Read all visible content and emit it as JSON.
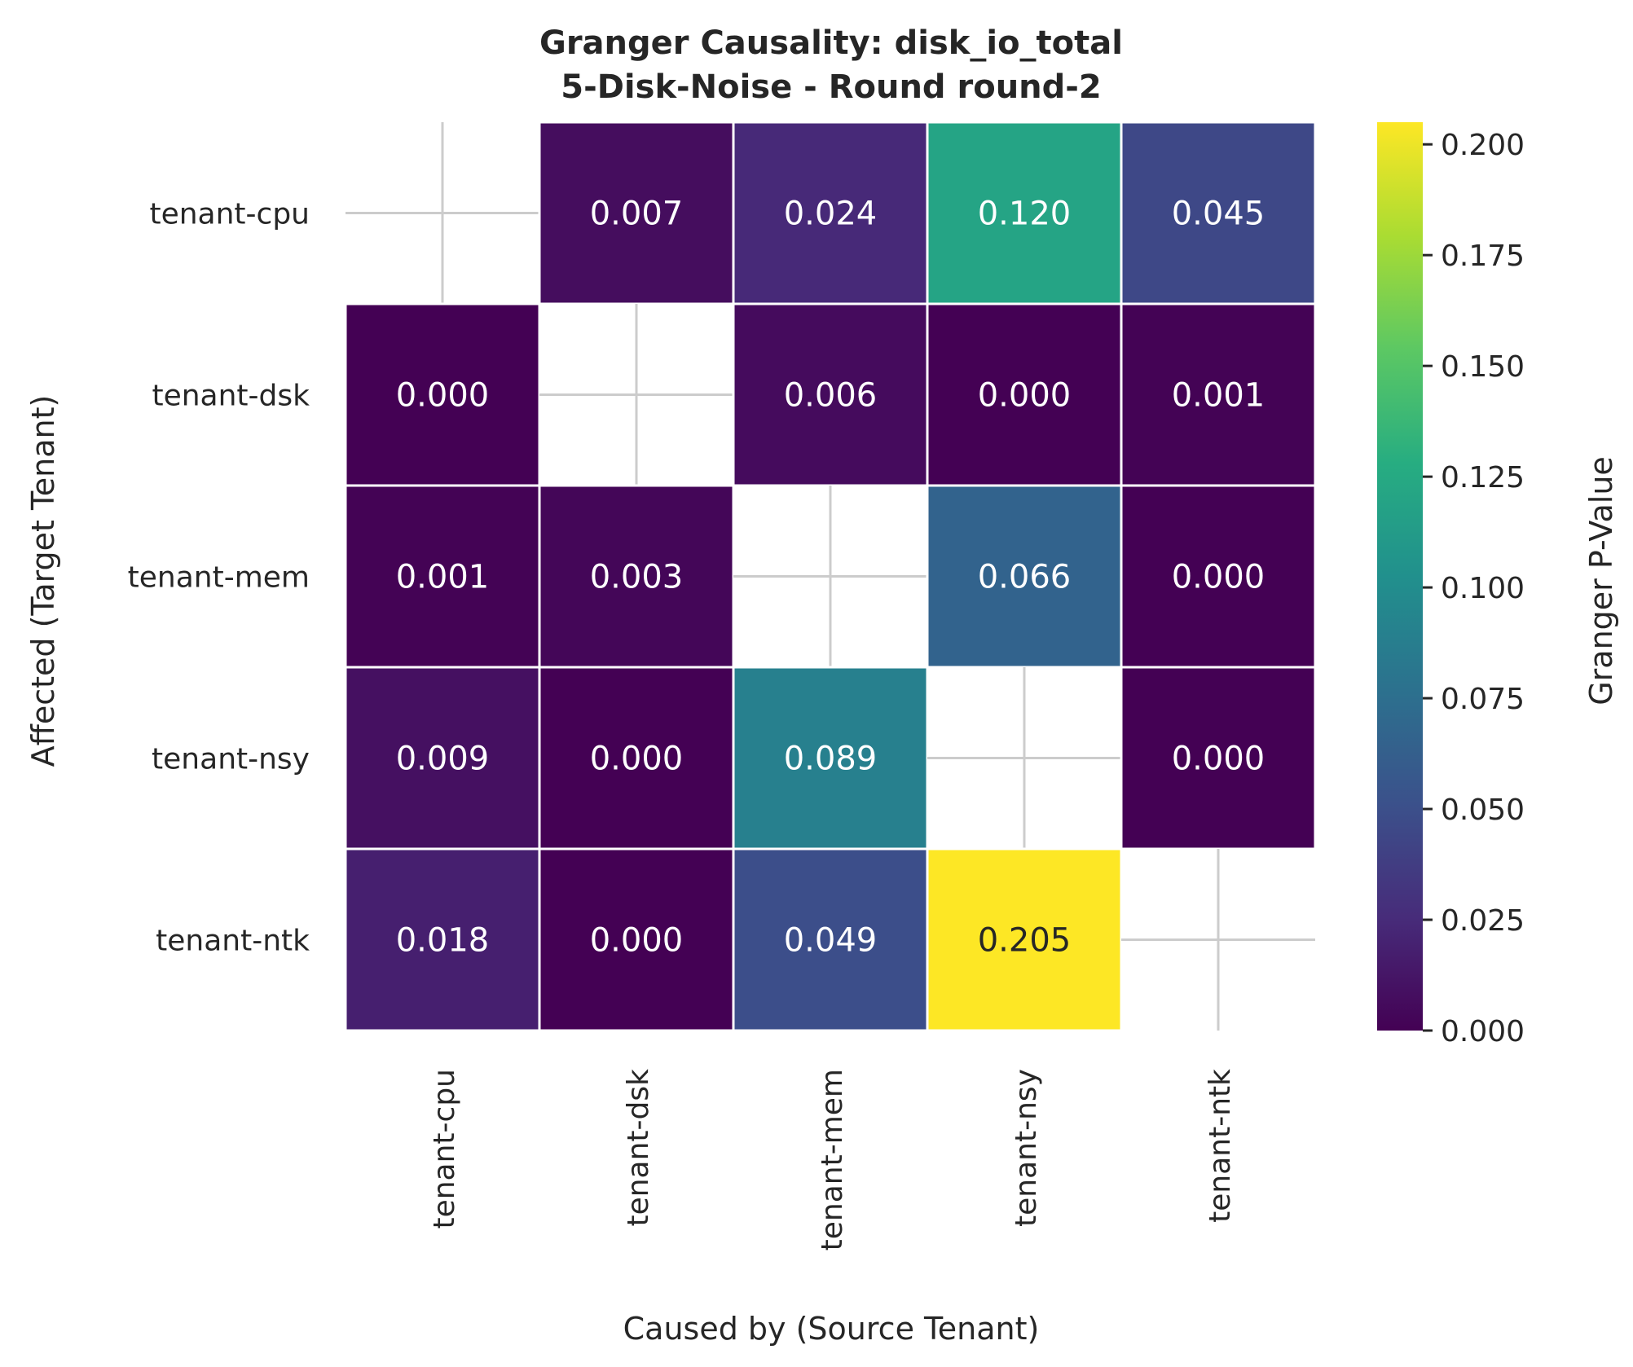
{
  "chart_data": {
    "type": "heatmap",
    "title": "Granger Causality: disk_io_total",
    "subtitle": "5-Disk-Noise - Round round-2",
    "xlabel": "Caused by (Source Tenant)",
    "ylabel": "Affected (Target Tenant)",
    "x_categories": [
      "tenant-cpu",
      "tenant-dsk",
      "tenant-mem",
      "tenant-nsy",
      "tenant-ntk"
    ],
    "y_categories": [
      "tenant-cpu",
      "tenant-dsk",
      "tenant-mem",
      "tenant-nsy",
      "tenant-ntk"
    ],
    "values": [
      [
        null,
        0.007,
        0.024,
        0.12,
        0.045
      ],
      [
        0.0,
        null,
        0.006,
        0.0,
        0.001
      ],
      [
        0.001,
        0.003,
        null,
        0.066,
        0.0
      ],
      [
        0.009,
        0.0,
        0.089,
        null,
        0.0
      ],
      [
        0.018,
        0.0,
        0.049,
        0.205,
        null
      ]
    ],
    "value_labels": [
      [
        null,
        "0.007",
        "0.024",
        "0.120",
        "0.045"
      ],
      [
        "0.000",
        null,
        "0.006",
        "0.000",
        "0.001"
      ],
      [
        "0.001",
        "0.003",
        null,
        "0.066",
        "0.000"
      ],
      [
        "0.009",
        "0.000",
        "0.089",
        null,
        "0.000"
      ],
      [
        "0.018",
        "0.000",
        "0.049",
        "0.205",
        null
      ]
    ],
    "colorbar": {
      "label": "Granger P-Value",
      "colormap": "viridis",
      "range": [
        0.0,
        0.205
      ],
      "ticks": [
        0.0,
        0.025,
        0.05,
        0.075,
        0.1,
        0.125,
        0.15,
        0.175,
        0.2
      ],
      "tick_labels": [
        "0.000",
        "0.025",
        "0.050",
        "0.075",
        "0.100",
        "0.125",
        "0.150",
        "0.175",
        "0.200"
      ]
    },
    "grid": true,
    "diagonal": "masked"
  }
}
